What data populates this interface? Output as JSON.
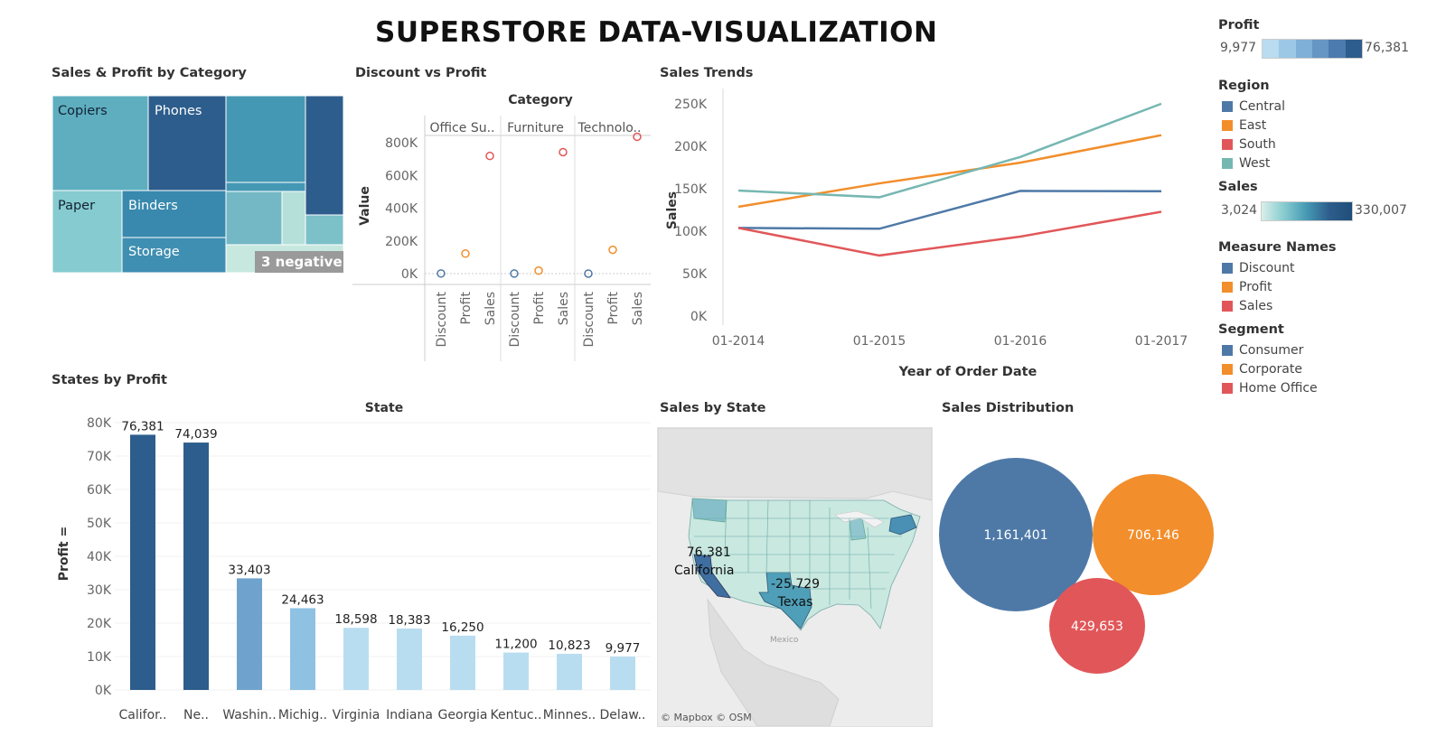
{
  "title": "SUPERSTORE DATA-VISUALIZATION",
  "colors": {
    "central": "#4e79a7",
    "east": "#f28e2b",
    "south": "#e15759",
    "west": "#76b7b2"
  },
  "treemap": {
    "title": "Sales & Profit by Category",
    "labels": {
      "copiers": "Copiers",
      "phones": "Phones",
      "paper": "Paper",
      "binders": "Binders",
      "storage": "Storage"
    },
    "negative_badge": "3 negative"
  },
  "scatter": {
    "title": "Discount vs Profit",
    "category_header": "Category",
    "ylabel": "Value",
    "yticks": [
      "800K",
      "600K",
      "400K",
      "200K",
      "0K"
    ],
    "groups": [
      "Office Su..",
      "Furniture",
      "Technolo.."
    ],
    "measures": [
      "Discount",
      "Profit",
      "Sales"
    ]
  },
  "trends": {
    "title": "Sales Trends",
    "ylabel": "Sales",
    "xlabel": "Year of Order Date",
    "yticks": [
      "250K",
      "200K",
      "150K",
      "100K",
      "50K",
      "0K"
    ],
    "xticks": [
      "01-2014",
      "01-2015",
      "01-2016",
      "01-2017"
    ]
  },
  "legends": {
    "profit": {
      "title": "Profit",
      "min": "9,977",
      "max": "76,381"
    },
    "region": {
      "title": "Region",
      "items": [
        "Central",
        "East",
        "South",
        "West"
      ]
    },
    "sales": {
      "title": "Sales",
      "min": "3,024",
      "max": "330,007"
    },
    "measure_names": {
      "title": "Measure Names",
      "items": [
        "Discount",
        "Profit",
        "Sales"
      ]
    },
    "segment": {
      "title": "Segment",
      "items": [
        "Consumer",
        "Corporate",
        "Home Office"
      ]
    }
  },
  "states": {
    "title": "States by Profit",
    "header": "State",
    "ylabel": "Profit ="
  },
  "map": {
    "title": "Sales by State",
    "attribution": "© Mapbox © OSM",
    "mexico": "Mexico",
    "ca_value": "76,381",
    "ca_label": "California",
    "tx_value": "-25,729",
    "tx_label": "Texas"
  },
  "distribution": {
    "title": "Sales Distribution",
    "bubbles": [
      "1,161,401",
      "706,146",
      "429,653"
    ]
  },
  "chart_data": [
    {
      "type": "line",
      "title": "Sales Trends",
      "xlabel": "Year of Order Date",
      "ylabel": "Sales",
      "x": [
        "01-2014",
        "01-2015",
        "01-2016",
        "01-2017"
      ],
      "ylim": [
        0,
        250000
      ],
      "series": [
        {
          "name": "Central",
          "values": [
            103838,
            102874,
            147429,
            147098
          ]
        },
        {
          "name": "East",
          "values": [
            128680,
            156332,
            180686,
            213083
          ]
        },
        {
          "name": "South",
          "values": [
            103846,
            71360,
            93610,
            122905
          ]
        },
        {
          "name": "West",
          "values": [
            147883,
            139966,
            187480,
            250128
          ]
        }
      ]
    },
    {
      "type": "bar",
      "title": "States by Profit",
      "ylabel": "Profit =",
      "categories": [
        "Califor..",
        "Ne..",
        "Washin..",
        "Michig..",
        "Virginia",
        "Indiana",
        "Georgia",
        "Kentuc..",
        "Minnes..",
        "Delaw.."
      ],
      "values": [
        76381,
        74039,
        33403,
        24463,
        18598,
        18383,
        16250,
        11200,
        10823,
        9977
      ],
      "value_labels": [
        "76,381",
        "74,039",
        "33,403",
        "24,463",
        "18,598",
        "18,383",
        "16,250",
        "11,200",
        "10,823",
        "9,977"
      ],
      "yticks": [
        "80K",
        "70K",
        "60K",
        "50K",
        "40K",
        "30K",
        "20K",
        "10K",
        "0K"
      ],
      "ylim": [
        0,
        80000
      ]
    },
    {
      "type": "scatter",
      "title": "Discount vs Profit",
      "ylabel": "Value",
      "groups": [
        "Office Su..",
        "Furniture",
        "Technolo.."
      ],
      "measures": [
        "Discount",
        "Profit",
        "Sales"
      ],
      "values": [
        [
          947,
          122491,
          719047
        ],
        [
          369,
          18451,
          742000
        ],
        [
          244,
          145455,
          836154
        ]
      ],
      "ylim": [
        0,
        900000
      ]
    },
    {
      "type": "scatter",
      "title": "Sales Distribution",
      "series": [
        {
          "name": "Consumer",
          "values": [
            1161401
          ]
        },
        {
          "name": "Corporate",
          "values": [
            706146
          ]
        },
        {
          "name": "Home Office",
          "values": [
            429653
          ]
        }
      ]
    }
  ]
}
